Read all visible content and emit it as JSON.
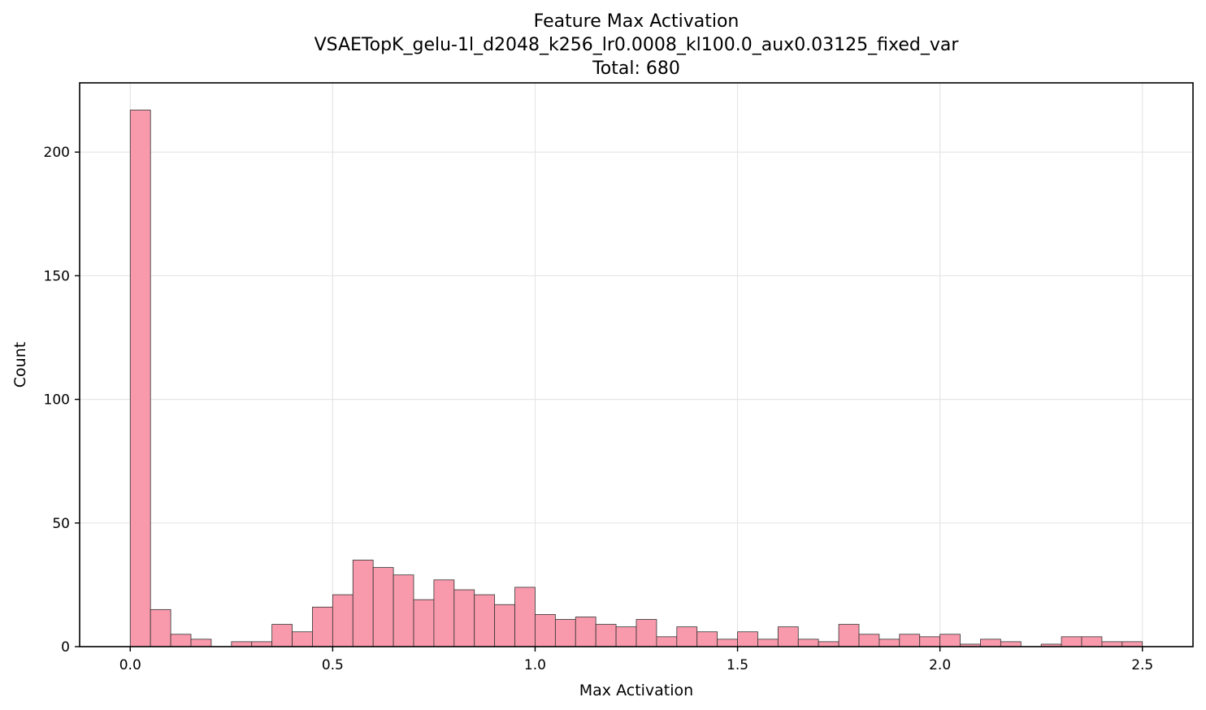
{
  "chart_data": {
    "type": "bar",
    "title": "Feature Max Activation",
    "subtitle": "VSAETopK_gelu-1l_d2048_k256_lr0.0008_kl100.0_aux0.03125_fixed_var",
    "total_text": "Total: 680",
    "xlabel": "Max Activation",
    "ylabel": "Count",
    "xlim": [
      -0.125,
      2.625
    ],
    "ylim": [
      0,
      228
    ],
    "grid": true,
    "x_ticks": [
      0.0,
      0.5,
      1.0,
      1.5,
      2.0,
      2.5
    ],
    "x_tick_labels": [
      "0.0",
      "0.5",
      "1.0",
      "1.5",
      "2.0",
      "2.5"
    ],
    "y_ticks": [
      0,
      50,
      100,
      150,
      200
    ],
    "y_tick_labels": [
      "0",
      "50",
      "100",
      "150",
      "200"
    ],
    "bin_width": 0.05,
    "bin_start": 0.0,
    "counts": [
      217,
      15,
      5,
      3,
      0,
      2,
      2,
      9,
      6,
      16,
      21,
      35,
      32,
      29,
      19,
      27,
      23,
      21,
      17,
      24,
      13,
      11,
      12,
      9,
      8,
      11,
      4,
      8,
      6,
      3,
      6,
      3,
      8,
      3,
      2,
      9,
      5,
      3,
      5,
      4,
      5,
      1,
      3,
      2,
      0,
      1,
      4,
      4,
      2,
      2
    ],
    "bar_color": "#f89aac",
    "edge_color": "#333333"
  }
}
